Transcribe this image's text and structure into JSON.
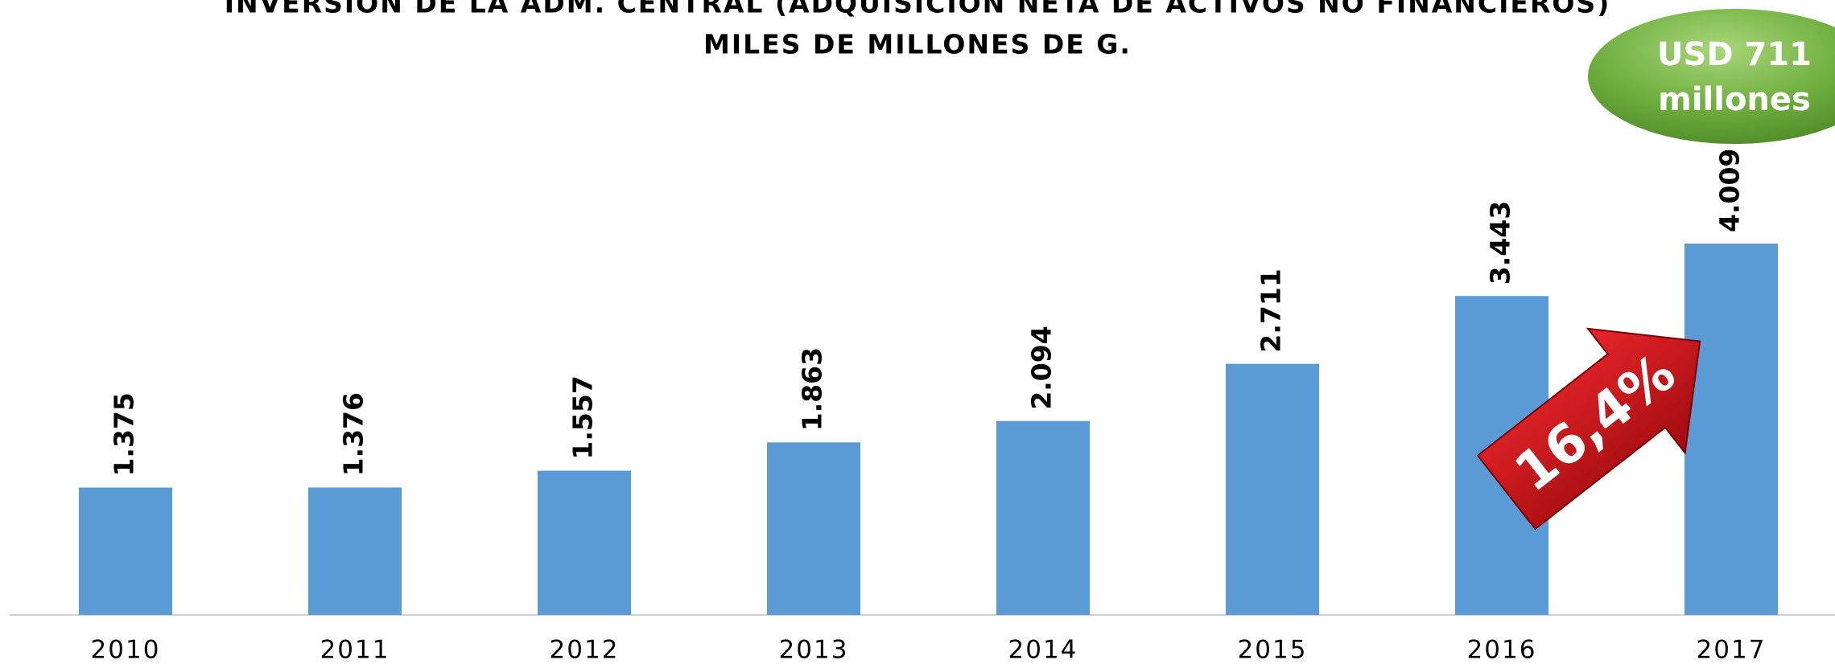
{
  "chart_data": {
    "type": "bar",
    "title": "INVERSIÓN DE LA ADM. CENTRAL (ADQUISICIÓN NETA DE ACTIVOS NO FINANCIEROS)",
    "subtitle": "MILES DE MILLONES DE G.",
    "categories": [
      "2010",
      "2011",
      "2012",
      "2013",
      "2014",
      "2015",
      "2016",
      "2017"
    ],
    "values": [
      1375,
      1376,
      1557,
      1863,
      2094,
      2711,
      3443,
      4009
    ],
    "value_labels": [
      "1.375",
      "1.376",
      "1.557",
      "1.863",
      "2.094",
      "2.711",
      "3.443",
      "4.009"
    ],
    "color": "#5b9bd5",
    "annotations": [
      {
        "text": "16,4%",
        "color": "#c00000"
      },
      {
        "text": [
          "USD 711",
          "millones"
        ],
        "color": "#70ad47"
      }
    ]
  }
}
